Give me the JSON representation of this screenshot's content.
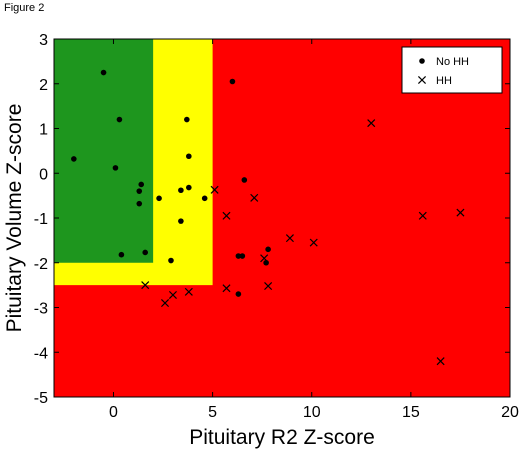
{
  "figure_label": "Figure 2",
  "chart_data": {
    "type": "scatter",
    "title": "",
    "xlabel": "Pituitary R2 Z-score",
    "ylabel": "Pituitary Volume Z-score",
    "xlim": [
      -3,
      20
    ],
    "ylim": [
      -5,
      3
    ],
    "xticks": [
      0,
      5,
      10,
      15,
      20
    ],
    "yticks": [
      3,
      2,
      1,
      0,
      -1,
      -2,
      -3,
      -4,
      -5
    ],
    "grid": false,
    "legend_position": "top-right",
    "regions": [
      {
        "color": "#ff0000",
        "x": [
          -3,
          20
        ],
        "y": [
          -5,
          3
        ]
      },
      {
        "color": "#ffff00",
        "x": [
          -3,
          5
        ],
        "y": [
          -2.5,
          3
        ]
      },
      {
        "color": "#1e961e",
        "x": [
          -3,
          2
        ],
        "y": [
          -2,
          3
        ]
      }
    ],
    "series": [
      {
        "name": "No HH",
        "marker": "dot",
        "color": "#000000",
        "points": [
          [
            -0.5,
            2.25
          ],
          [
            -2.0,
            0.32
          ],
          [
            0.3,
            1.2
          ],
          [
            0.1,
            0.12
          ],
          [
            1.4,
            -0.25
          ],
          [
            1.3,
            -0.4
          ],
          [
            1.3,
            -0.68
          ],
          [
            1.6,
            -1.77
          ],
          [
            0.4,
            -1.82
          ],
          [
            3.7,
            1.2
          ],
          [
            3.8,
            0.38
          ],
          [
            3.8,
            -0.32
          ],
          [
            3.4,
            -0.38
          ],
          [
            2.3,
            -0.56
          ],
          [
            3.4,
            -1.07
          ],
          [
            2.9,
            -1.95
          ],
          [
            4.6,
            -0.56
          ],
          [
            6.0,
            2.05
          ],
          [
            6.6,
            -0.15
          ],
          [
            6.3,
            -1.85
          ],
          [
            6.5,
            -1.85
          ],
          [
            7.8,
            -1.7
          ],
          [
            7.7,
            -2.0
          ],
          [
            6.3,
            -2.7
          ]
        ]
      },
      {
        "name": "HH",
        "marker": "x",
        "color": "#000000",
        "points": [
          [
            1.6,
            -2.5
          ],
          [
            3.0,
            -2.72
          ],
          [
            3.8,
            -2.65
          ],
          [
            2.6,
            -2.9
          ],
          [
            5.1,
            -0.37
          ],
          [
            5.7,
            -0.95
          ],
          [
            7.1,
            -0.55
          ],
          [
            5.7,
            -2.57
          ],
          [
            7.6,
            -1.9
          ],
          [
            7.8,
            -2.52
          ],
          [
            8.9,
            -1.45
          ],
          [
            10.1,
            -1.55
          ],
          [
            13.0,
            1.12
          ],
          [
            15.6,
            -0.95
          ],
          [
            17.5,
            -0.88
          ],
          [
            16.5,
            -4.2
          ]
        ]
      }
    ]
  }
}
